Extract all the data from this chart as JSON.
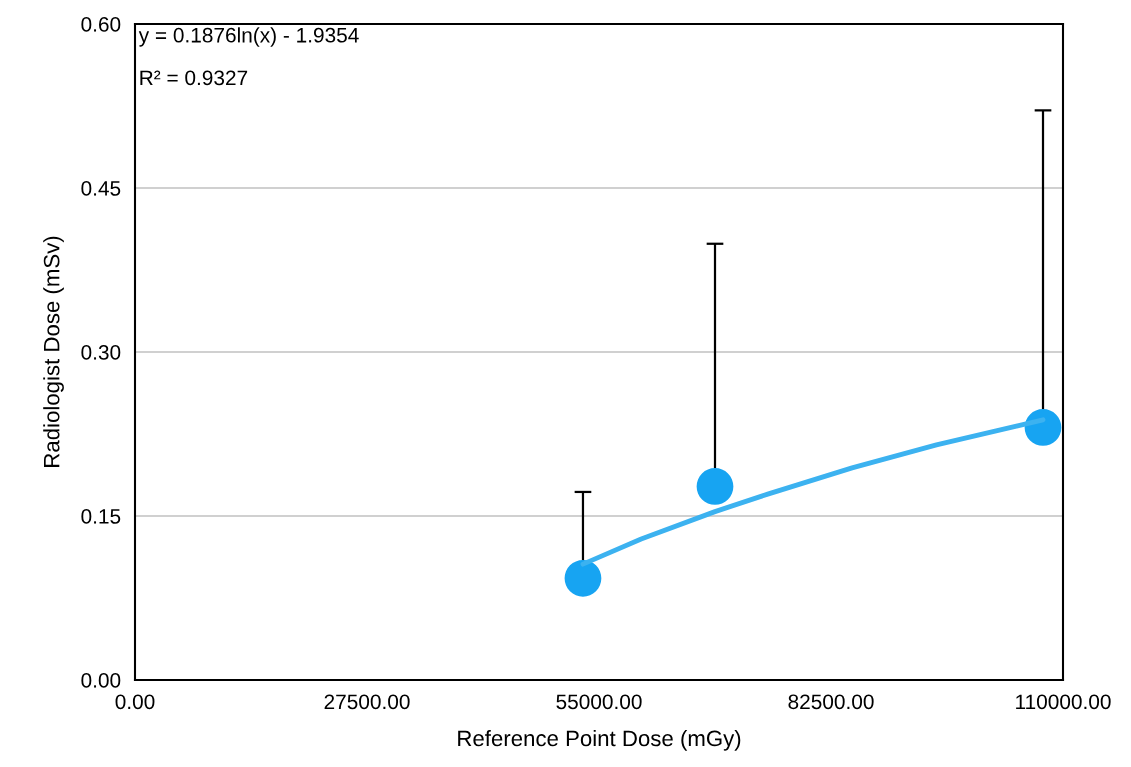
{
  "chart_data": {
    "type": "scatter",
    "xlabel": "Reference Point Dose (mGy)",
    "ylabel": "Radiologist Dose (mSv)",
    "xlim": [
      0,
      110000
    ],
    "ylim": [
      0,
      0.6
    ],
    "xticks": [
      {
        "value": 0,
        "label": "0.00"
      },
      {
        "value": 27500,
        "label": "27500.00"
      },
      {
        "value": 55000,
        "label": "55000.00"
      },
      {
        "value": 82500,
        "label": "82500.00"
      },
      {
        "value": 110000,
        "label": "110000.00"
      }
    ],
    "yticks": [
      {
        "value": 0,
        "label": "0.00"
      },
      {
        "value": 0.15,
        "label": "0.15"
      },
      {
        "value": 0.3,
        "label": "0.30"
      },
      {
        "value": 0.45,
        "label": "0.45"
      },
      {
        "value": 0.6,
        "label": "0.60"
      }
    ],
    "grid": "y",
    "marker": "circle",
    "series": [
      {
        "color": "#17a4f2",
        "x": [
          53100,
          68750,
          107630
        ],
        "values": [
          0.093,
          0.177,
          0.231
        ],
        "errors": [
          [
            0.093,
            0.172
          ],
          [
            0.177,
            0.399
          ],
          [
            0.231,
            0.521
          ]
        ]
      },
      {
        "type": "line",
        "marker": "none",
        "color": "#3cb2f0",
        "x": [
          53100,
          60000,
          68750,
          75000,
          85000,
          95000,
          107630
        ],
        "values": [
          0.106,
          0.129,
          0.154,
          0.17,
          0.194,
          0.215,
          0.238
        ]
      }
    ],
    "annotations": [
      "y = 0.1876ln(x) - 1.9354",
      "R² = 0.9327"
    ]
  }
}
